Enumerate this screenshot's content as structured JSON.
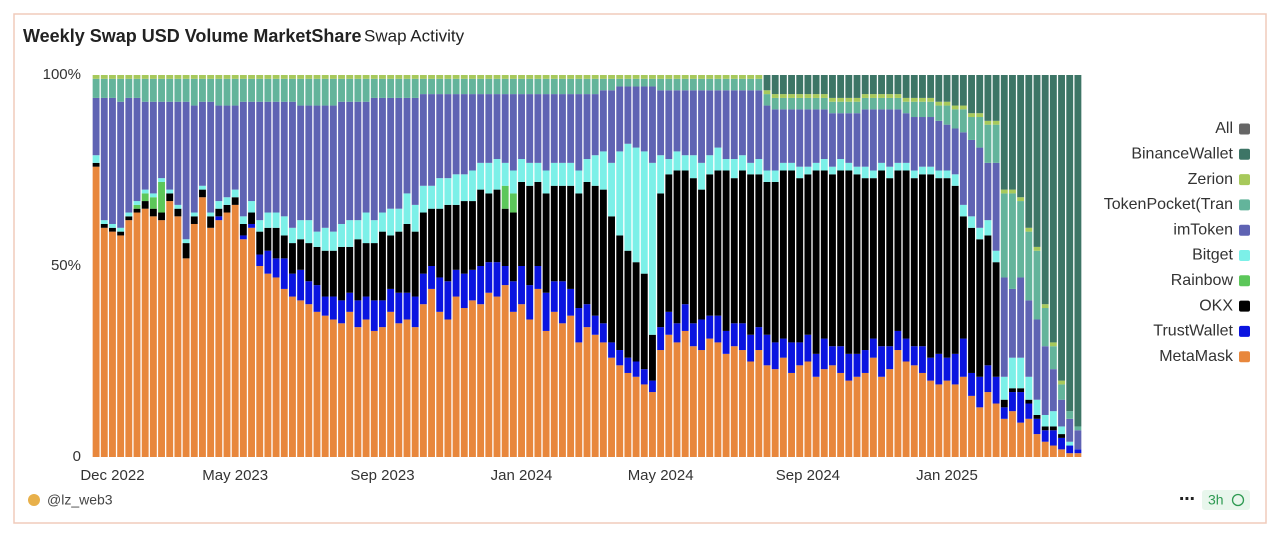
{
  "chart_data": {
    "type": "stacked-bar-percent",
    "title": "Weekly Swap USD Volume MarketShare",
    "subtitle": "Swap Activity",
    "categories": [
      null,
      null,
      "Dec 2022",
      null,
      null,
      null,
      null,
      null,
      null,
      null,
      null,
      null,
      null,
      null,
      null,
      null,
      null,
      "May 2023",
      null,
      null,
      null,
      null,
      null,
      null,
      null,
      null,
      null,
      null,
      null,
      null,
      null,
      null,
      null,
      null,
      null,
      "Sep 2023",
      null,
      null,
      null,
      null,
      null,
      null,
      null,
      null,
      null,
      null,
      null,
      null,
      null,
      null,
      null,
      null,
      "Jan 2024",
      null,
      null,
      null,
      null,
      null,
      null,
      null,
      null,
      null,
      null,
      null,
      null,
      null,
      null,
      null,
      null,
      "May 2024",
      null,
      null,
      null,
      null,
      null,
      null,
      null,
      null,
      null,
      null,
      null,
      null,
      null,
      null,
      null,
      null,
      null,
      "Sep 2024",
      null,
      null,
      null,
      null,
      null,
      null,
      null,
      null,
      null,
      null,
      null,
      null,
      null,
      null,
      null,
      null,
      "Jan 2025",
      null,
      null,
      null,
      null,
      null,
      null,
      null,
      null,
      null,
      null,
      null,
      null,
      null,
      null,
      null,
      null
    ],
    "ylim": [
      0,
      100
    ],
    "yticks": [
      0,
      {
        "value": 50,
        "label": "50%"
      },
      {
        "value": 100,
        "label": "100%"
      }
    ],
    "series": [
      {
        "name": "MetaMask",
        "color": "#e8873c",
        "values": [
          76,
          60,
          59,
          58,
          62,
          64,
          65,
          63,
          62,
          67,
          63,
          52,
          61,
          68,
          60,
          62,
          64,
          66,
          57,
          60,
          50,
          48,
          47,
          44,
          42,
          41,
          40,
          38,
          37,
          36,
          35,
          38,
          34,
          36,
          33,
          34,
          38,
          35,
          36,
          34,
          40,
          44,
          38,
          36,
          42,
          39,
          41,
          40,
          43,
          42,
          45,
          38,
          40,
          36,
          44,
          33,
          38,
          35,
          37,
          30,
          34,
          32,
          30,
          26,
          24,
          22,
          21,
          19,
          17,
          28,
          32,
          30,
          33,
          29,
          28,
          31,
          30,
          27,
          29,
          28,
          25,
          28,
          24,
          23,
          26,
          22,
          24,
          25,
          21,
          23,
          24,
          22,
          20,
          21,
          22,
          26,
          21,
          23,
          28,
          25,
          24,
          22,
          20,
          19,
          20,
          19,
          21,
          16,
          13,
          17,
          14,
          10,
          12,
          9,
          10,
          6,
          4,
          3,
          2,
          1,
          1
        ]
      },
      {
        "name": "TrustWallet",
        "color": "#0a14e0",
        "values": [
          0,
          0,
          0,
          0,
          0,
          0,
          0,
          0,
          0,
          0,
          0,
          0,
          0,
          0,
          0,
          1,
          0,
          0,
          1,
          1,
          3,
          6,
          5,
          8,
          6,
          8,
          6,
          7,
          5,
          6,
          6,
          5,
          7,
          6,
          8,
          7,
          6,
          8,
          7,
          8,
          8,
          6,
          9,
          10,
          7,
          9,
          8,
          10,
          8,
          9,
          5,
          8,
          10,
          9,
          6,
          10,
          8,
          11,
          7,
          9,
          6,
          5,
          5,
          4,
          4,
          4,
          4,
          4,
          3,
          6,
          6,
          5,
          7,
          6,
          8,
          6,
          7,
          6,
          6,
          7,
          7,
          6,
          8,
          7,
          5,
          8,
          6,
          7,
          6,
          8,
          5,
          7,
          7,
          6,
          6,
          5,
          8,
          6,
          5,
          6,
          5,
          7,
          6,
          8,
          6,
          8,
          10,
          6,
          8,
          7,
          7,
          3,
          5,
          8,
          4,
          4,
          3,
          4,
          3,
          2,
          1
        ]
      },
      {
        "name": "OKX",
        "color": "#000000",
        "values": [
          1,
          1,
          1,
          1,
          1,
          1,
          2,
          2,
          2,
          2,
          2,
          4,
          2,
          2,
          3,
          2,
          2,
          2,
          3,
          3,
          6,
          6,
          8,
          6,
          8,
          8,
          10,
          10,
          12,
          12,
          14,
          12,
          16,
          14,
          15,
          18,
          14,
          16,
          18,
          17,
          16,
          15,
          18,
          20,
          17,
          19,
          18,
          20,
          18,
          19,
          15,
          18,
          22,
          26,
          22,
          26,
          25,
          25,
          27,
          30,
          32,
          34,
          35,
          33,
          30,
          28,
          26,
          25,
          12,
          35,
          36,
          40,
          35,
          38,
          34,
          37,
          38,
          42,
          38,
          40,
          42,
          40,
          40,
          42,
          44,
          45,
          43,
          42,
          48,
          44,
          45,
          46,
          48,
          47,
          45,
          42,
          46,
          44,
          42,
          44,
          44,
          45,
          48,
          46,
          47,
          44,
          32,
          38,
          36,
          34,
          30,
          2,
          1,
          1,
          1,
          1,
          1,
          1,
          1,
          0,
          0
        ]
      },
      {
        "name": "Rainbow",
        "color": "#5cc75a",
        "values": [
          0,
          0,
          0,
          0,
          0,
          1,
          2,
          3,
          8,
          0,
          0,
          0,
          0,
          0,
          0,
          0,
          0,
          0,
          0,
          0,
          0,
          0,
          0,
          0,
          0,
          0,
          0,
          0,
          0,
          0,
          0,
          0,
          0,
          0,
          0,
          0,
          0,
          0,
          0,
          0,
          0,
          0,
          0,
          0,
          0,
          0,
          0,
          0,
          0,
          0,
          6,
          5,
          0,
          0,
          0,
          0,
          0,
          0,
          0,
          0,
          0,
          0,
          0,
          0,
          0,
          0,
          0,
          0,
          0,
          0,
          0,
          0,
          0,
          0,
          0,
          0,
          0,
          0,
          0,
          0,
          0,
          0,
          0,
          0,
          0,
          0,
          0,
          0,
          0,
          0,
          0,
          0,
          0,
          0,
          0,
          0,
          0,
          0,
          0,
          0,
          0,
          0,
          0,
          0,
          0,
          0,
          0,
          0,
          0,
          0,
          0,
          0,
          0,
          0,
          0,
          0,
          0,
          0,
          0,
          0,
          0
        ]
      },
      {
        "name": "Bitget",
        "color": "#7cf0e8",
        "values": [
          2,
          1,
          1,
          1,
          1,
          1,
          1,
          1,
          1,
          1,
          1,
          1,
          1,
          1,
          1,
          2,
          2,
          2,
          2,
          3,
          3,
          4,
          4,
          5,
          4,
          5,
          6,
          4,
          6,
          5,
          6,
          7,
          5,
          8,
          6,
          5,
          7,
          6,
          8,
          7,
          7,
          6,
          8,
          7,
          8,
          7,
          8,
          7,
          8,
          8,
          6,
          6,
          6,
          6,
          5,
          6,
          6,
          6,
          6,
          6,
          6,
          8,
          10,
          14,
          22,
          28,
          30,
          32,
          45,
          10,
          4,
          5,
          4,
          6,
          7,
          5,
          6,
          3,
          5,
          4,
          3,
          4,
          3,
          3,
          2,
          2,
          3,
          2,
          2,
          3,
          2,
          3,
          2,
          2,
          3,
          2,
          2,
          3,
          2,
          2,
          2,
          2,
          2,
          2,
          2,
          3,
          3,
          3,
          3,
          4,
          3,
          6,
          8,
          8,
          6,
          4,
          3,
          4,
          2,
          1,
          0
        ]
      },
      {
        "name": "imToken",
        "color": "#5f63b3",
        "values": [
          15,
          32,
          33,
          33,
          30,
          27,
          23,
          24,
          20,
          23,
          27,
          36,
          28,
          22,
          29,
          25,
          24,
          22,
          30,
          26,
          31,
          29,
          29,
          30,
          33,
          30,
          30,
          33,
          32,
          33,
          32,
          31,
          31,
          29,
          32,
          30,
          29,
          29,
          25,
          28,
          24,
          24,
          22,
          22,
          21,
          21,
          20,
          18,
          18,
          17,
          18,
          20,
          17,
          18,
          18,
          20,
          18,
          18,
          18,
          20,
          17,
          16,
          16,
          19,
          17,
          15,
          16,
          17,
          20,
          17,
          18,
          16,
          17,
          17,
          19,
          17,
          15,
          18,
          18,
          17,
          19,
          18,
          17,
          16,
          14,
          14,
          15,
          15,
          14,
          13,
          14,
          12,
          13,
          14,
          15,
          16,
          14,
          15,
          14,
          13,
          14,
          13,
          13,
          13,
          12,
          12,
          19,
          20,
          21,
          15,
          23,
          26,
          18,
          21,
          20,
          21,
          18,
          11,
          7,
          6,
          5
        ]
      },
      {
        "name": "TokenPocket(Tran",
        "color": "#63b49b",
        "values": [
          5,
          5,
          5,
          6,
          5,
          5,
          6,
          6,
          6,
          6,
          6,
          6,
          7,
          6,
          6,
          7,
          7,
          7,
          6,
          6,
          6,
          6,
          6,
          6,
          6,
          7,
          7,
          7,
          7,
          7,
          6,
          6,
          6,
          6,
          5,
          5,
          5,
          5,
          5,
          5,
          4,
          4,
          4,
          4,
          4,
          4,
          4,
          4,
          4,
          4,
          4,
          4,
          4,
          4,
          4,
          4,
          4,
          4,
          4,
          4,
          4,
          4,
          3,
          3,
          2,
          2,
          2,
          2,
          2,
          3,
          3,
          3,
          3,
          3,
          3,
          3,
          3,
          3,
          3,
          3,
          3,
          3,
          3,
          3,
          3,
          3,
          3,
          3,
          3,
          3,
          3,
          3,
          3,
          3,
          3,
          3,
          3,
          3,
          3,
          3,
          4,
          4,
          4,
          4,
          5,
          5,
          6,
          6,
          8,
          10,
          10,
          22,
          25,
          20,
          18,
          18,
          10,
          6,
          4,
          2,
          1
        ]
      },
      {
        "name": "Zerion",
        "color": "#a7c95b",
        "values": [
          1,
          1,
          1,
          1,
          1,
          1,
          1,
          1,
          1,
          1,
          1,
          1,
          1,
          1,
          1,
          1,
          1,
          1,
          1,
          1,
          1,
          1,
          1,
          1,
          1,
          1,
          1,
          1,
          1,
          1,
          1,
          1,
          1,
          1,
          1,
          1,
          1,
          1,
          1,
          1,
          1,
          1,
          1,
          1,
          1,
          1,
          1,
          1,
          1,
          1,
          1,
          1,
          1,
          1,
          1,
          1,
          1,
          1,
          1,
          1,
          1,
          1,
          1,
          1,
          1,
          1,
          1,
          1,
          1,
          1,
          1,
          1,
          1,
          1,
          1,
          1,
          1,
          1,
          1,
          1,
          1,
          1,
          1,
          1,
          1,
          1,
          1,
          1,
          1,
          1,
          1,
          1,
          1,
          1,
          1,
          1,
          1,
          1,
          1,
          1,
          1,
          1,
          1,
          1,
          1,
          1,
          1,
          1,
          1,
          1,
          1,
          1,
          1,
          1,
          1,
          1,
          1,
          1,
          1,
          0,
          0
        ]
      },
      {
        "name": "BinanceWallet",
        "color": "#3d7566",
        "values": [
          0,
          0,
          0,
          0,
          0,
          0,
          0,
          0,
          0,
          0,
          0,
          0,
          0,
          0,
          0,
          0,
          0,
          0,
          0,
          0,
          0,
          0,
          0,
          0,
          0,
          0,
          0,
          0,
          0,
          0,
          0,
          0,
          0,
          0,
          0,
          0,
          0,
          0,
          0,
          0,
          0,
          0,
          0,
          0,
          0,
          0,
          0,
          0,
          0,
          0,
          0,
          0,
          0,
          0,
          0,
          0,
          0,
          0,
          0,
          0,
          0,
          0,
          0,
          0,
          0,
          0,
          0,
          0,
          0,
          0,
          0,
          0,
          0,
          0,
          0,
          0,
          0,
          0,
          0,
          0,
          0,
          0,
          4,
          5,
          5,
          5,
          5,
          5,
          5,
          5,
          6,
          6,
          6,
          6,
          5,
          5,
          5,
          5,
          5,
          6,
          6,
          6,
          6,
          7,
          7,
          8,
          8,
          10,
          10,
          12,
          12,
          30,
          30,
          32,
          40,
          45,
          60,
          70,
          80,
          88,
          92
        ]
      },
      {
        "name": "All",
        "color": "#666666",
        "values": [
          0,
          0,
          0,
          0,
          0,
          0,
          0,
          0,
          0,
          0,
          0,
          0,
          0,
          0,
          0,
          0,
          0,
          0,
          0,
          0,
          0,
          0,
          0,
          0,
          0,
          0,
          0,
          0,
          0,
          0,
          0,
          0,
          0,
          0,
          0,
          0,
          0,
          0,
          0,
          0,
          0,
          0,
          0,
          0,
          0,
          0,
          0,
          0,
          0,
          0,
          0,
          0,
          0,
          0,
          0,
          0,
          0,
          0,
          0,
          0,
          0,
          0,
          0,
          0,
          0,
          0,
          0,
          0,
          0,
          0,
          0,
          0,
          0,
          0,
          0,
          0,
          0,
          0,
          0,
          0,
          0,
          0,
          0,
          0,
          0,
          0,
          0,
          0,
          0,
          0,
          0,
          0,
          0,
          0,
          0,
          0,
          0,
          0,
          0,
          0,
          0,
          0,
          0,
          0,
          0,
          0,
          0,
          0,
          0,
          0,
          0,
          0,
          0,
          0,
          0,
          0,
          0,
          0,
          0,
          0,
          0
        ]
      }
    ],
    "legend": "right"
  },
  "footer": {
    "author": "@lz_web3",
    "refresh": "3h"
  }
}
